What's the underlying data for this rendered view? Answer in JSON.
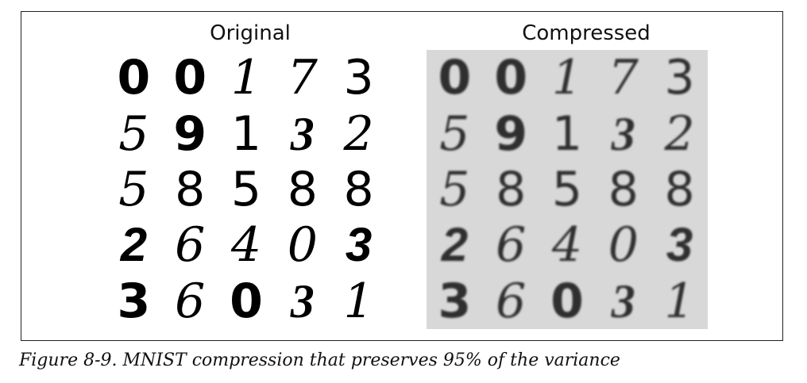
{
  "figure": {
    "panels": [
      {
        "title": "Original",
        "rows": [
          [
            "0",
            "0",
            "1",
            "7",
            "3"
          ],
          [
            "5",
            "9",
            "1",
            "3",
            "2"
          ],
          [
            "5",
            "8",
            "5",
            "8",
            "8"
          ],
          [
            "2",
            "6",
            "4",
            "0",
            "3"
          ],
          [
            "3",
            "6",
            "0",
            "3",
            "1"
          ]
        ],
        "background": "#ffffff"
      },
      {
        "title": "Compressed",
        "rows": [
          [
            "0",
            "0",
            "1",
            "7",
            "3"
          ],
          [
            "5",
            "9",
            "1",
            "3",
            "2"
          ],
          [
            "5",
            "8",
            "5",
            "8",
            "8"
          ],
          [
            "2",
            "6",
            "4",
            "0",
            "3"
          ],
          [
            "3",
            "6",
            "0",
            "3",
            "1"
          ]
        ],
        "background": "#d8d8d8"
      }
    ],
    "caption": "Figure 8-9. MNIST compression that preserves 95% of the variance"
  }
}
